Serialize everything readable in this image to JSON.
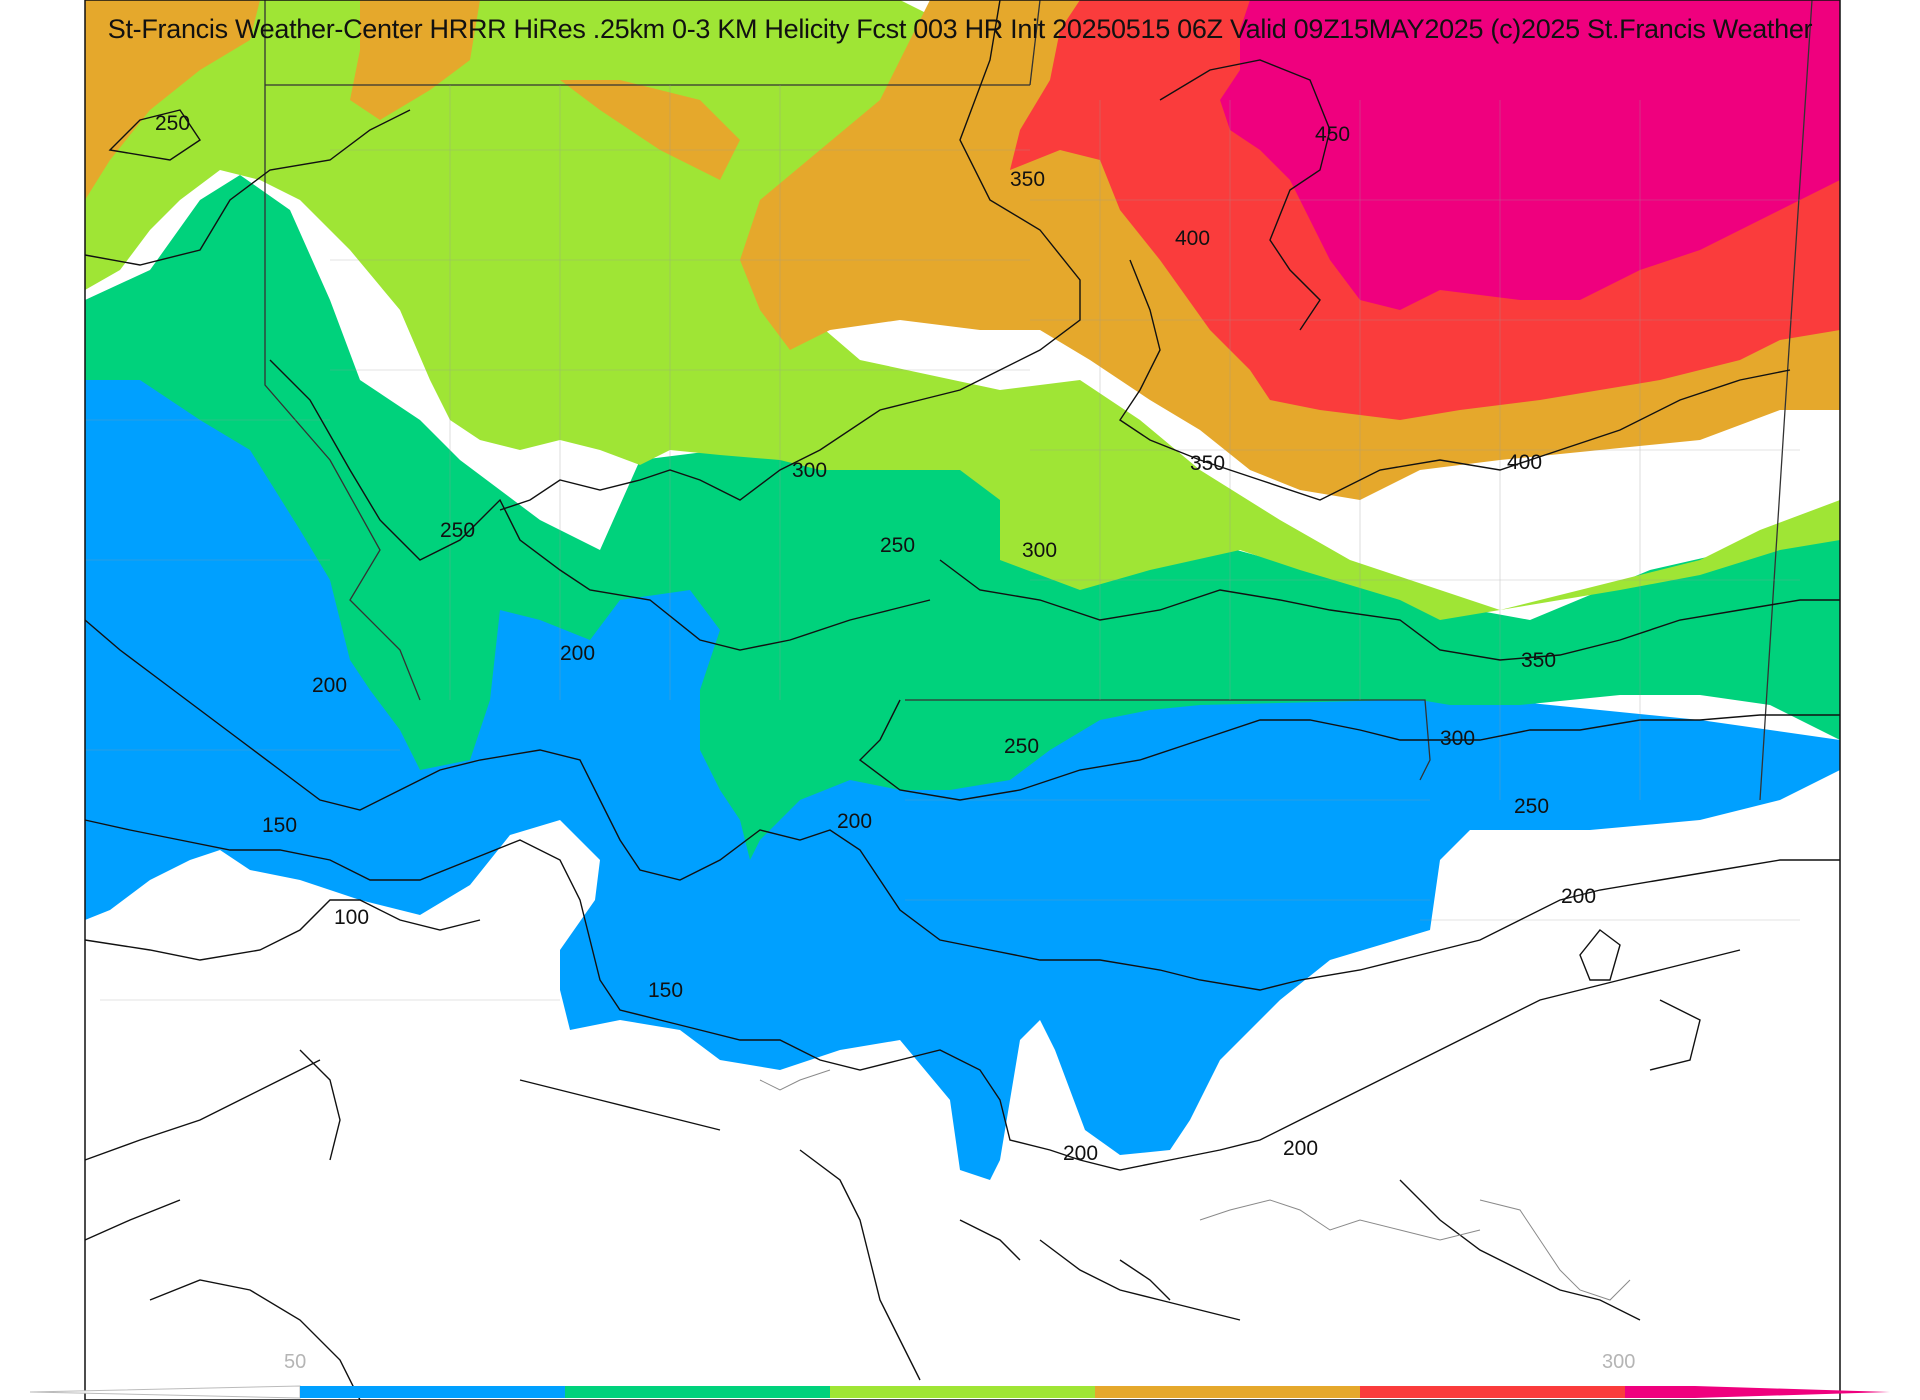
{
  "title": "St-Francis Weather-Center HRRR HiRes .25km 0-3 KM Helicity Fcst 003 HR Init 20250515 06Z  Valid 09Z15MAY2025    (c)2025 St.Francis Weather",
  "contour_labels": [
    "250",
    "350",
    "450",
    "400",
    "300",
    "250",
    "250",
    "350",
    "400",
    "300",
    "200",
    "200",
    "250",
    "350",
    "300",
    "150",
    "200",
    "250",
    "100",
    "200",
    "150",
    "200",
    "200"
  ],
  "colorbar": {
    "tick_labels": [
      "50",
      "300"
    ],
    "colors": [
      "#00a0ff",
      "#00d27c",
      "#9fe535",
      "#e5a82c",
      "#fa3c3c",
      "#ef007e"
    ]
  },
  "fill_colors": {
    "white": "#ffffff",
    "blue": "#00a0ff",
    "green": "#00d27c",
    "lime": "#9fe535",
    "orange": "#e5a82c",
    "red": "#fa3c3c",
    "magenta": "#ef007e"
  }
}
